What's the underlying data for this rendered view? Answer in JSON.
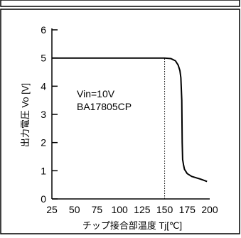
{
  "chart_data": {
    "type": "line",
    "title": "",
    "xlabel": "チップ接合部温度 Tj[℃]",
    "ylabel": "出力電圧 Vo [V]",
    "xlim": [
      25,
      200
    ],
    "ylim": [
      0,
      6
    ],
    "x_ticks": [
      "25",
      "50",
      "75",
      "100",
      "125",
      "150",
      "175",
      "200"
    ],
    "y_ticks": [
      "0",
      "1",
      "2",
      "3",
      "4",
      "5",
      "6"
    ],
    "grid": false,
    "annotations": [
      "Vin=10V",
      "BA17805CP"
    ],
    "reference_line": {
      "x": 150,
      "y_from": 0,
      "y_to": 5,
      "style": "dotted"
    },
    "series": [
      {
        "x": [
          25,
          150,
          157,
          162,
          165,
          167,
          168,
          169,
          169.5,
          170,
          171,
          172,
          175,
          180,
          190,
          197
        ],
        "y": [
          5,
          5,
          4.98,
          4.9,
          4.75,
          4.55,
          4.3,
          3.5,
          2.0,
          1.4,
          1.2,
          1.05,
          0.9,
          0.8,
          0.7,
          0.62
        ]
      }
    ]
  }
}
